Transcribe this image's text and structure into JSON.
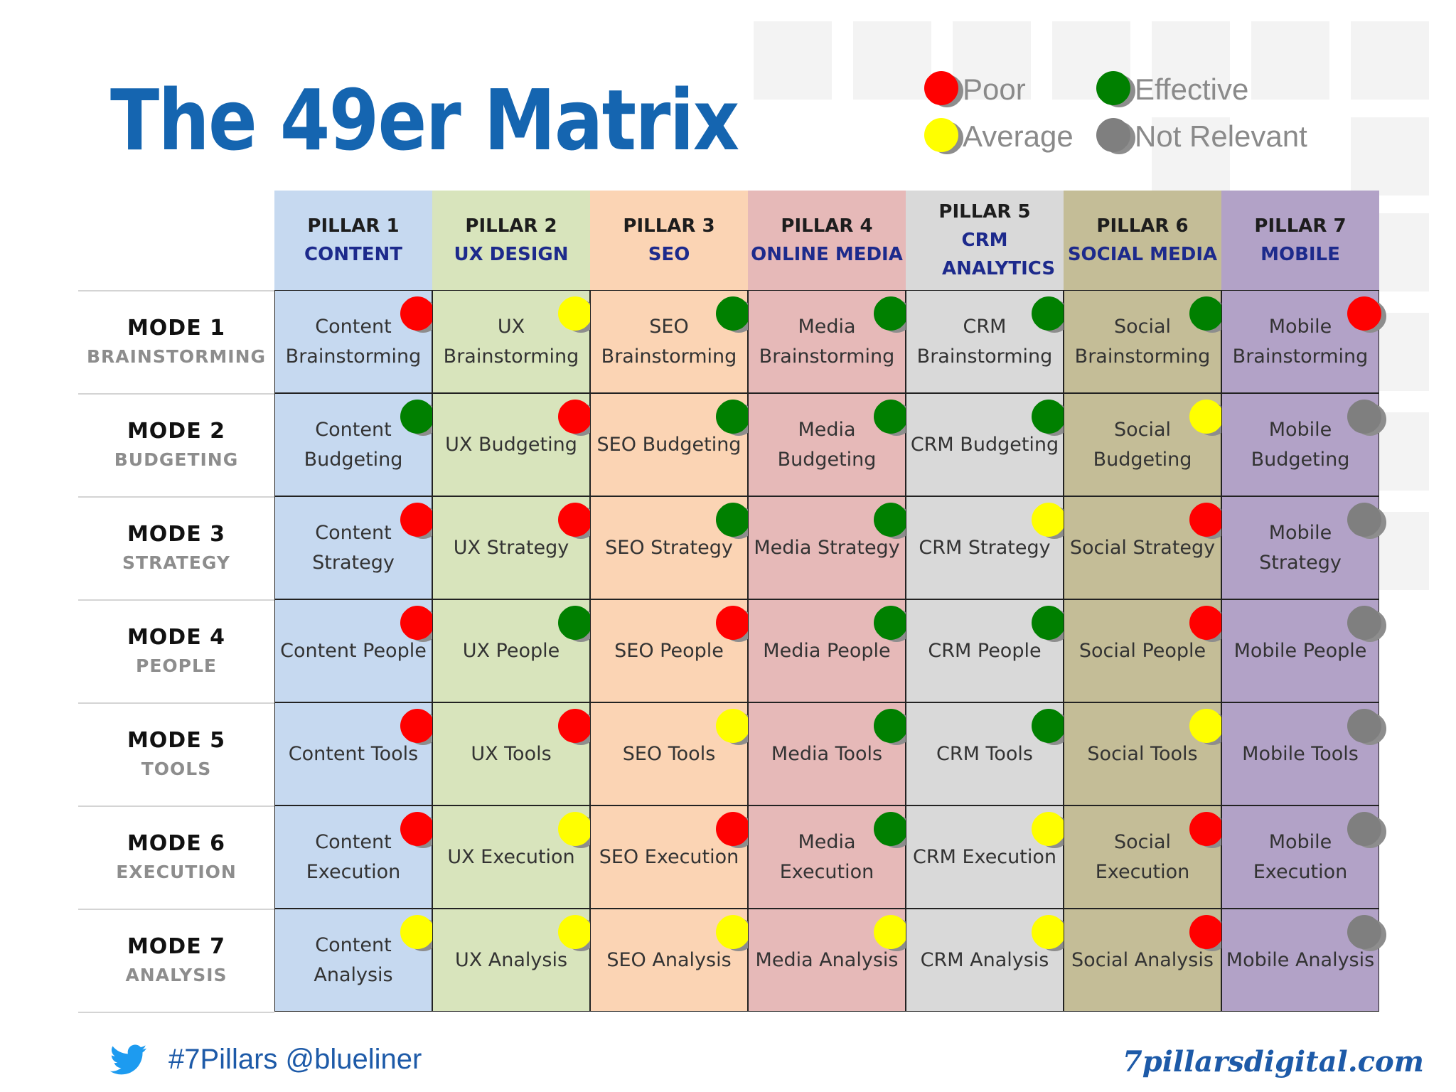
{
  "title": "The 49er Matrix",
  "colors": {
    "red": "#ff0000",
    "yellow": "#ffff00",
    "green": "#008000",
    "gray": "#7f7f7f",
    "title_blue": "#1565b0"
  },
  "legend": [
    {
      "status": "red",
      "label": "Poor"
    },
    {
      "status": "green",
      "label": "Effective"
    },
    {
      "status": "yellow",
      "label": "Average"
    },
    {
      "status": "gray",
      "label": "Not Relevant"
    }
  ],
  "pillars": [
    {
      "label": "PILLAR 1",
      "name": "CONTENT",
      "bg": "#c6d9f0"
    },
    {
      "label": "PILLAR 2",
      "name": "UX DESIGN",
      "bg": "#d8e4bc"
    },
    {
      "label": "PILLAR 3",
      "name": "SEO",
      "bg": "#fbd4b4"
    },
    {
      "label": "PILLAR 4",
      "name": "ONLINE MEDIA",
      "bg": "#e6b9b8"
    },
    {
      "label": "PILLAR 5",
      "name": "CRM ANALYTICS",
      "bg": "#d9d9d9"
    },
    {
      "label": "PILLAR 6",
      "name": "SOCIAL MEDIA",
      "bg": "#c4bd97"
    },
    {
      "label": "PILLAR 7",
      "name": "MOBILE",
      "bg": "#b2a2c7"
    }
  ],
  "modes": [
    {
      "label": "MODE 1",
      "name": "BRAINSTORMING"
    },
    {
      "label": "MODE 2",
      "name": "BUDGETING"
    },
    {
      "label": "MODE 3",
      "name": "STRATEGY"
    },
    {
      "label": "MODE 4",
      "name": "PEOPLE"
    },
    {
      "label": "MODE 5",
      "name": "TOOLS"
    },
    {
      "label": "MODE 6",
      "name": "EXECUTION"
    },
    {
      "label": "MODE 7",
      "name": "ANALYSIS"
    }
  ],
  "cells": [
    [
      {
        "text": "Content Brainstorming",
        "status": "red"
      },
      {
        "text": "UX Brainstorming",
        "status": "yellow"
      },
      {
        "text": "SEO Brainstorming",
        "status": "green"
      },
      {
        "text": "Media Brainstorming",
        "status": "green"
      },
      {
        "text": "CRM Brainstorming",
        "status": "green"
      },
      {
        "text": "Social Brainstorming",
        "status": "green"
      },
      {
        "text": "Mobile Brainstorming",
        "status": "red"
      }
    ],
    [
      {
        "text": "Content Budgeting",
        "status": "green"
      },
      {
        "text": "UX Budgeting",
        "status": "red"
      },
      {
        "text": "SEO Budgeting",
        "status": "green"
      },
      {
        "text": "Media Budgeting",
        "status": "green"
      },
      {
        "text": "CRM Budgeting",
        "status": "green"
      },
      {
        "text": "Social Budgeting",
        "status": "yellow"
      },
      {
        "text": "Mobile Budgeting",
        "status": "gray"
      }
    ],
    [
      {
        "text": "Content Strategy",
        "status": "red"
      },
      {
        "text": "UX Strategy",
        "status": "red"
      },
      {
        "text": "SEO Strategy",
        "status": "green"
      },
      {
        "text": "Media Strategy",
        "status": "green"
      },
      {
        "text": "CRM Strategy",
        "status": "yellow"
      },
      {
        "text": "Social Strategy",
        "status": "red"
      },
      {
        "text": "Mobile Strategy",
        "status": "gray"
      }
    ],
    [
      {
        "text": "Content People",
        "status": "red"
      },
      {
        "text": "UX People",
        "status": "green"
      },
      {
        "text": "SEO People",
        "status": "red"
      },
      {
        "text": "Media People",
        "status": "green"
      },
      {
        "text": "CRM People",
        "status": "green"
      },
      {
        "text": "Social People",
        "status": "red"
      },
      {
        "text": "Mobile People",
        "status": "gray"
      }
    ],
    [
      {
        "text": "Content Tools",
        "status": "red"
      },
      {
        "text": "UX Tools",
        "status": "red"
      },
      {
        "text": "SEO Tools",
        "status": "yellow"
      },
      {
        "text": "Media Tools",
        "status": "green"
      },
      {
        "text": "CRM Tools",
        "status": "green"
      },
      {
        "text": "Social Tools",
        "status": "yellow"
      },
      {
        "text": "Mobile Tools",
        "status": "gray"
      }
    ],
    [
      {
        "text": "Content Execution",
        "status": "red"
      },
      {
        "text": "UX Execution",
        "status": "yellow"
      },
      {
        "text": "SEO Execution",
        "status": "red"
      },
      {
        "text": "Media Execution",
        "status": "green"
      },
      {
        "text": "CRM Execution",
        "status": "yellow"
      },
      {
        "text": "Social Execution",
        "status": "red"
      },
      {
        "text": "Mobile Execution",
        "status": "gray"
      }
    ],
    [
      {
        "text": "Content Analysis",
        "status": "yellow"
      },
      {
        "text": "UX Analysis",
        "status": "yellow"
      },
      {
        "text": "SEO Analysis",
        "status": "yellow"
      },
      {
        "text": "Media Analysis",
        "status": "yellow"
      },
      {
        "text": "CRM Analysis",
        "status": "yellow"
      },
      {
        "text": "Social Analysis",
        "status": "red"
      },
      {
        "text": "Mobile Analysis",
        "status": "gray"
      }
    ]
  ],
  "footer": {
    "hashtag": "#7Pillars @blueliner",
    "brand": "7pillarsdigital.com",
    "twitter_icon": "twitter-bird-icon"
  }
}
